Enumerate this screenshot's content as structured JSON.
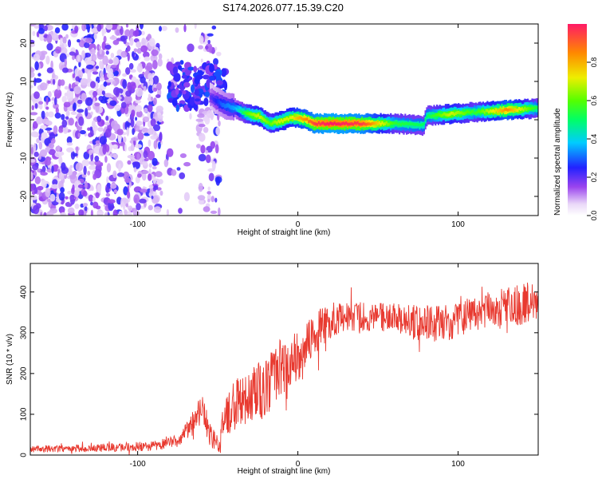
{
  "title": "S174.2026.077.15.39.C20",
  "chart_data": [
    {
      "type": "heatmap",
      "name": "spectrogram",
      "xlabel": "Height of straight line (km)",
      "ylabel": "Frequency (Hz)",
      "xlim": [
        -167,
        150
      ],
      "ylim": [
        -25,
        25
      ],
      "xticks": [
        -100,
        0,
        100
      ],
      "yticks": [
        -20,
        -10,
        0,
        10,
        20
      ],
      "colorbar": {
        "label": "Normalized spectral amplitude",
        "range": [
          0,
          1
        ],
        "ticks": [
          "0.0",
          "0.2",
          "0.4",
          "0.6",
          "0.8"
        ]
      },
      "noise_region": {
        "x_from": -167,
        "x_to": -49,
        "gap": [
          -85,
          -62
        ]
      },
      "ridge": {
        "x": [
          -55,
          -48,
          -40,
          -32,
          -25,
          -18,
          -12,
          -5,
          0,
          5,
          10,
          20,
          40,
          60,
          78,
          80,
          95,
          110,
          130,
          150
        ],
        "freq": [
          6,
          4,
          3,
          1.5,
          1,
          -1,
          -0.5,
          0.5,
          0.5,
          0,
          -1,
          -1,
          -1,
          -1,
          -1.5,
          1,
          1.5,
          2,
          2.5,
          3
        ],
        "amplitude": [
          0.2,
          0.3,
          0.35,
          0.6,
          0.7,
          0.6,
          0.7,
          0.7,
          0.8,
          0.85,
          0.95,
          1.0,
          0.95,
          0.55,
          0.5,
          0.5,
          0.7,
          0.55,
          0.85,
          0.5
        ]
      }
    },
    {
      "type": "line",
      "name": "snr",
      "xlabel": "Height of straight line (km)",
      "ylabel": "SNR (10 * v/v)",
      "xlim": [
        -167,
        150
      ],
      "ylim": [
        0,
        470
      ],
      "xticks": [
        -100,
        0,
        100
      ],
      "yticks": [
        0,
        100,
        200,
        300,
        400
      ],
      "color": "#e83a30",
      "envelope": {
        "x": [
          -167,
          -120,
          -90,
          -75,
          -65,
          -60,
          -55,
          -49,
          -47,
          -40,
          -30,
          -20,
          -10,
          0,
          10,
          20,
          30,
          50,
          70,
          90,
          110,
          130,
          150
        ],
        "mean": [
          15,
          18,
          22,
          35,
          80,
          110,
          60,
          20,
          80,
          120,
          150,
          160,
          220,
          240,
          300,
          330,
          340,
          340,
          330,
          320,
          350,
          360,
          380
        ],
        "noise": [
          8,
          10,
          12,
          15,
          30,
          40,
          40,
          15,
          40,
          60,
          70,
          70,
          70,
          60,
          50,
          45,
          35,
          35,
          40,
          45,
          45,
          50,
          50
        ]
      }
    }
  ]
}
